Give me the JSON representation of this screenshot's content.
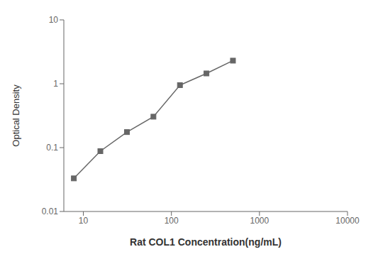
{
  "chart_data": {
    "type": "line",
    "x": [
      7.8,
      15.6,
      31.25,
      62.5,
      125,
      250,
      500
    ],
    "values": [
      0.033,
      0.088,
      0.175,
      0.305,
      0.95,
      1.45,
      2.3
    ],
    "xlabel": "Rat COL1 Concentration(ng/mL)",
    "ylabel": "Optical Density",
    "xlim": [
      6,
      10000
    ],
    "ylim": [
      0.01,
      10
    ],
    "xticks": [
      10,
      100,
      1000,
      10000
    ],
    "yticks": [
      0.01,
      0.1,
      1,
      10
    ],
    "log": true,
    "color": "#666666",
    "marker": "square"
  }
}
